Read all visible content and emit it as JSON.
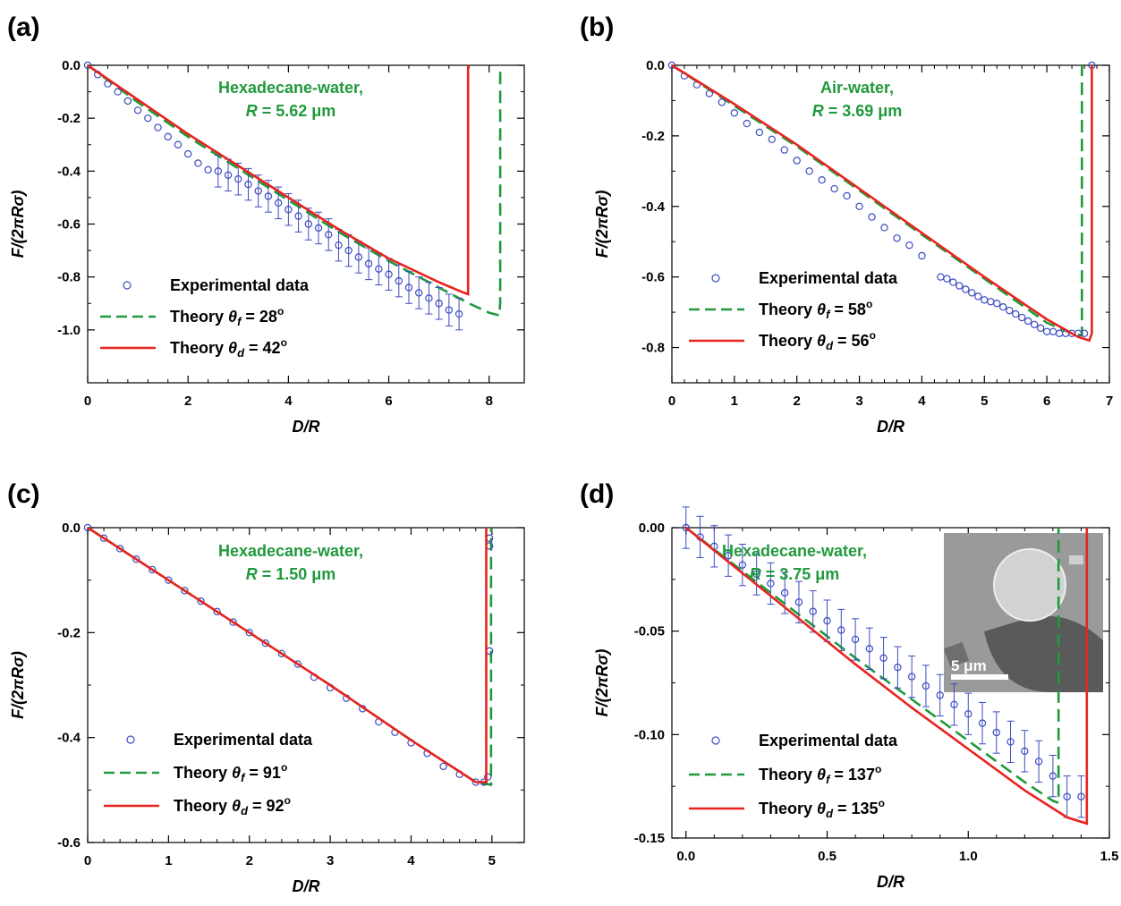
{
  "colors": {
    "experimental": "#3b4cc0",
    "theory_f": "#1f9a3c",
    "theory_d": "#e8231e"
  },
  "legend_labels": {
    "experimental": "Experimental data",
    "theory_prefix": "Theory",
    "theta": "θ",
    "sub_f": "f",
    "sub_d": "d",
    "eq": " = ",
    "deg": "o"
  },
  "chart_data": [
    {
      "type": "scatter",
      "panel_label": "(a)",
      "xlabel": "D/R",
      "ylabel": "F/(2πRσ)",
      "xlim": [
        0,
        8.7
      ],
      "ylim": [
        -1.2,
        0.0
      ],
      "xticks": [
        0,
        2,
        4,
        6,
        8
      ],
      "xtick_labels": [
        "0",
        "2",
        "4",
        "6",
        "8"
      ],
      "yticks": [
        0.0,
        -0.2,
        -0.4,
        -0.6,
        -0.8,
        -1.0
      ],
      "ytick_labels": [
        "0.0",
        "-0.2",
        "-0.4",
        "-0.6",
        "-0.8",
        "-1.0"
      ],
      "annotation": {
        "line1": "Hexadecane-water,",
        "r_symbol": "R",
        "r_value": " = 5.62 μm"
      },
      "legend": {
        "theory_f_value": "28",
        "theory_d_value": "42"
      },
      "experimental": {
        "x": [
          0.0,
          0.2,
          0.4,
          0.6,
          0.8,
          1.0,
          1.2,
          1.4,
          1.6,
          1.8,
          2.0,
          2.2,
          2.4,
          2.6,
          2.8,
          3.0,
          3.2,
          3.4,
          3.6,
          3.8,
          4.0,
          4.2,
          4.4,
          4.6,
          4.8,
          5.0,
          5.2,
          5.4,
          5.6,
          5.8,
          6.0,
          6.2,
          6.4,
          6.6,
          6.8,
          7.0,
          7.2,
          7.4
        ],
        "y": [
          0.0,
          -0.035,
          -0.07,
          -0.1,
          -0.135,
          -0.17,
          -0.2,
          -0.235,
          -0.27,
          -0.3,
          -0.335,
          -0.37,
          -0.395,
          -0.4,
          -0.415,
          -0.43,
          -0.45,
          -0.475,
          -0.495,
          -0.52,
          -0.545,
          -0.57,
          -0.6,
          -0.615,
          -0.64,
          -0.68,
          -0.7,
          -0.725,
          -0.75,
          -0.77,
          -0.79,
          -0.815,
          -0.84,
          -0.86,
          -0.88,
          -0.9,
          -0.925,
          -0.94
        ],
        "err_from_x": 2.5,
        "err": 0.06
      },
      "theory_f": {
        "x": [
          0.0,
          1.0,
          2.0,
          3.0,
          4.0,
          5.0,
          6.0,
          7.0,
          7.6,
          8.0,
          8.2,
          8.22,
          8.22
        ],
        "y": [
          0.0,
          -0.14,
          -0.27,
          -0.39,
          -0.51,
          -0.63,
          -0.74,
          -0.84,
          -0.9,
          -0.935,
          -0.945,
          -0.9,
          0.0
        ]
      },
      "theory_d": {
        "x": [
          0.0,
          1.0,
          2.0,
          3.0,
          4.0,
          5.0,
          6.0,
          7.0,
          7.5,
          7.58,
          7.58
        ],
        "y": [
          0.0,
          -0.13,
          -0.26,
          -0.38,
          -0.5,
          -0.62,
          -0.73,
          -0.82,
          -0.86,
          -0.865,
          0.0
        ]
      }
    },
    {
      "type": "scatter",
      "panel_label": "(b)",
      "xlabel": "D/R",
      "ylabel": "F/(2πRσ)",
      "xlim": [
        0,
        7.0
      ],
      "ylim": [
        -0.9,
        0.0
      ],
      "xticks": [
        0,
        1,
        2,
        3,
        4,
        5,
        6,
        7
      ],
      "xtick_labels": [
        "0",
        "1",
        "2",
        "3",
        "4",
        "5",
        "6",
        "7"
      ],
      "yticks": [
        0.0,
        -0.2,
        -0.4,
        -0.6,
        -0.8
      ],
      "ytick_labels": [
        "0.0",
        "-0.2",
        "-0.4",
        "-0.6",
        "-0.8"
      ],
      "annotation": {
        "line1": "Air-water,",
        "r_symbol": "R",
        "r_value": " = 3.69 μm"
      },
      "legend": {
        "theory_f_value": "58",
        "theory_d_value": "56"
      },
      "experimental": {
        "x": [
          0.0,
          0.2,
          0.4,
          0.6,
          0.8,
          1.0,
          1.2,
          1.4,
          1.6,
          1.8,
          2.0,
          2.2,
          2.4,
          2.6,
          2.8,
          3.0,
          3.2,
          3.4,
          3.6,
          3.8,
          4.0,
          4.3,
          4.4,
          4.5,
          4.6,
          4.7,
          4.8,
          4.9,
          5.0,
          5.1,
          5.2,
          5.3,
          5.4,
          5.5,
          5.6,
          5.7,
          5.8,
          5.9,
          6.0,
          6.1,
          6.2,
          6.3,
          6.4,
          6.5,
          6.6,
          6.72
        ],
        "y": [
          0.0,
          -0.03,
          -0.055,
          -0.08,
          -0.105,
          -0.135,
          -0.165,
          -0.19,
          -0.21,
          -0.24,
          -0.27,
          -0.3,
          -0.325,
          -0.35,
          -0.37,
          -0.4,
          -0.43,
          -0.46,
          -0.49,
          -0.51,
          -0.54,
          -0.6,
          -0.605,
          -0.615,
          -0.625,
          -0.635,
          -0.645,
          -0.655,
          -0.665,
          -0.67,
          -0.675,
          -0.685,
          -0.695,
          -0.705,
          -0.715,
          -0.725,
          -0.735,
          -0.745,
          -0.755,
          -0.755,
          -0.76,
          -0.76,
          -0.76,
          -0.76,
          -0.76,
          0.0
        ],
        "err_from_x": 99,
        "err": 0.0
      },
      "theory_f": {
        "x": [
          0.0,
          1.0,
          2.0,
          3.0,
          4.0,
          5.0,
          6.0,
          6.4,
          6.56,
          6.56
        ],
        "y": [
          0.0,
          -0.115,
          -0.23,
          -0.355,
          -0.48,
          -0.605,
          -0.73,
          -0.76,
          -0.765,
          0.0
        ]
      },
      "theory_d": {
        "x": [
          0.0,
          1.0,
          2.0,
          3.0,
          4.0,
          5.0,
          6.0,
          6.5,
          6.68,
          6.72,
          6.72
        ],
        "y": [
          0.0,
          -0.11,
          -0.225,
          -0.35,
          -0.475,
          -0.6,
          -0.72,
          -0.77,
          -0.78,
          -0.76,
          0.0
        ]
      }
    },
    {
      "type": "scatter",
      "panel_label": "(c)",
      "xlabel": "D/R",
      "ylabel": "F/(2πRσ)",
      "xlim": [
        0,
        5.4
      ],
      "ylim": [
        -0.6,
        0.0
      ],
      "xticks": [
        0,
        1,
        2,
        3,
        4,
        5
      ],
      "xtick_labels": [
        "0",
        "1",
        "2",
        "3",
        "4",
        "5"
      ],
      "yticks": [
        0.0,
        -0.2,
        -0.4,
        -0.6
      ],
      "ytick_labels": [
        "0.0",
        "-0.2",
        "-0.4",
        "-0.6"
      ],
      "annotation": {
        "line1": "Hexadecane-water,",
        "r_symbol": "R",
        "r_value": " = 1.50 μm"
      },
      "legend": {
        "theory_f_value": "91",
        "theory_d_value": "92"
      },
      "experimental": {
        "x": [
          0.0,
          0.2,
          0.4,
          0.6,
          0.8,
          1.0,
          1.2,
          1.4,
          1.6,
          1.8,
          2.0,
          2.2,
          2.4,
          2.6,
          2.8,
          3.0,
          3.2,
          3.4,
          3.6,
          3.8,
          4.0,
          4.2,
          4.4,
          4.6,
          4.8,
          4.9,
          4.95,
          4.97,
          4.97,
          4.97
        ],
        "y": [
          0.0,
          -0.02,
          -0.04,
          -0.06,
          -0.08,
          -0.1,
          -0.12,
          -0.14,
          -0.16,
          -0.18,
          -0.2,
          -0.22,
          -0.24,
          -0.26,
          -0.285,
          -0.305,
          -0.325,
          -0.345,
          -0.37,
          -0.39,
          -0.41,
          -0.43,
          -0.455,
          -0.47,
          -0.485,
          -0.485,
          -0.475,
          -0.235,
          -0.035,
          -0.02
        ],
        "err_from_x": 99,
        "err": 0.0
      },
      "theory_f": {
        "x": [
          0.0,
          1.0,
          2.0,
          3.0,
          4.0,
          4.8,
          4.99,
          4.99
        ],
        "y": [
          0.0,
          -0.1,
          -0.2,
          -0.3,
          -0.405,
          -0.485,
          -0.49,
          0.0
        ]
      },
      "theory_d": {
        "x": [
          0.0,
          1.0,
          2.0,
          3.0,
          4.0,
          4.8,
          4.93,
          4.93
        ],
        "y": [
          0.0,
          -0.1,
          -0.2,
          -0.3,
          -0.405,
          -0.485,
          -0.485,
          0.0
        ]
      }
    },
    {
      "type": "scatter",
      "panel_label": "(d)",
      "xlabel": "D/R",
      "ylabel": "F/(2πRσ)",
      "xlim": [
        -0.05,
        1.5
      ],
      "ylim": [
        -0.15,
        0.0
      ],
      "xticks": [
        0.0,
        0.5,
        1.0,
        1.5
      ],
      "xtick_labels": [
        "0.0",
        "0.5",
        "1.0",
        "1.5"
      ],
      "yticks": [
        0.0,
        -0.05,
        -0.1,
        -0.15
      ],
      "ytick_labels": [
        "0.00",
        "-0.05",
        "-0.10",
        "-0.15"
      ],
      "annotation": {
        "line1": "Hexadecane-water,",
        "r_symbol": "R",
        "r_value": " = 3.75 μm"
      },
      "legend": {
        "theory_f_value": "137",
        "theory_d_value": "135"
      },
      "inset": {
        "scale_label": "5 μm"
      },
      "experimental": {
        "x": [
          0.0,
          0.05,
          0.1,
          0.15,
          0.2,
          0.25,
          0.3,
          0.35,
          0.4,
          0.45,
          0.5,
          0.55,
          0.6,
          0.65,
          0.7,
          0.75,
          0.8,
          0.85,
          0.9,
          0.95,
          1.0,
          1.05,
          1.1,
          1.15,
          1.2,
          1.25,
          1.3,
          1.35,
          1.4
        ],
        "y": [
          0.0,
          -0.0045,
          -0.009,
          -0.0135,
          -0.018,
          -0.0225,
          -0.027,
          -0.0315,
          -0.036,
          -0.0405,
          -0.045,
          -0.0495,
          -0.054,
          -0.0585,
          -0.063,
          -0.0675,
          -0.072,
          -0.0765,
          -0.081,
          -0.0855,
          -0.09,
          -0.0945,
          -0.099,
          -0.1035,
          -0.108,
          -0.113,
          -0.12,
          -0.13,
          -0.13
        ],
        "err_from_x": 0.0,
        "err": 0.01
      },
      "theory_f": {
        "x": [
          0.0,
          0.2,
          0.4,
          0.6,
          0.8,
          1.0,
          1.2,
          1.3,
          1.32,
          1.32
        ],
        "y": [
          0.0,
          -0.021,
          -0.042,
          -0.063,
          -0.083,
          -0.103,
          -0.123,
          -0.132,
          -0.133,
          0.0
        ]
      },
      "theory_d": {
        "x": [
          0.0,
          0.2,
          0.4,
          0.6,
          0.8,
          1.0,
          1.2,
          1.35,
          1.42,
          1.42
        ],
        "y": [
          0.0,
          -0.022,
          -0.044,
          -0.066,
          -0.087,
          -0.107,
          -0.127,
          -0.14,
          -0.143,
          0.0
        ]
      }
    }
  ]
}
